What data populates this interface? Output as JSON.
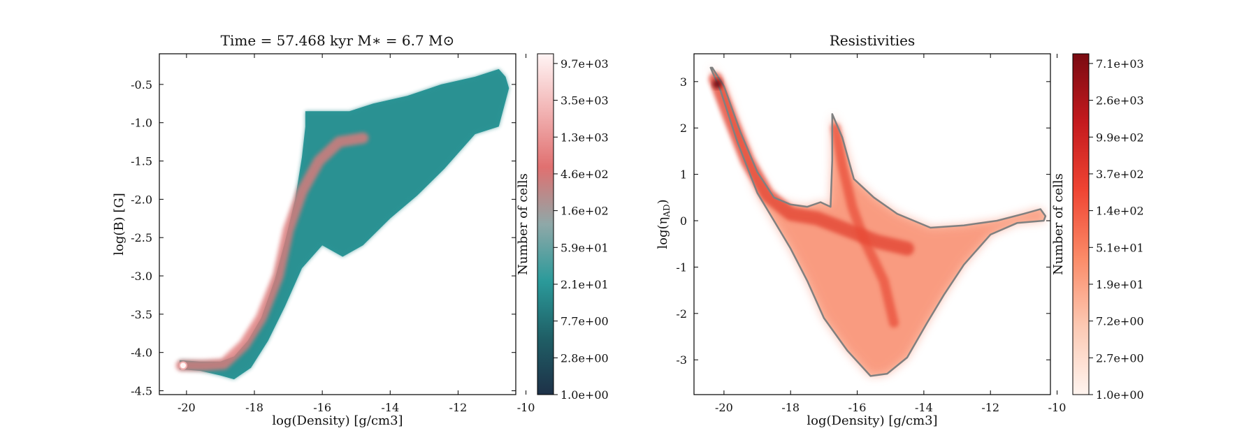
{
  "chart_data": [
    {
      "type": "heatmap",
      "title": "Time = 57.468 kyr    M$_*$ = 6.7 M$_\\odot$",
      "title_display": "Time = 57.468 kyr    M∗ = 6.7 M⊙",
      "xlabel": "log(Density) [g/cm3]",
      "ylabel": "log(B) [G]",
      "xlim": [
        -20.8,
        -10.3
      ],
      "ylim": [
        -4.55,
        -0.1
      ],
      "xticks": [
        -20,
        -18,
        -16,
        -14,
        -12,
        -10
      ],
      "yticks": [
        -4.5,
        -4.0,
        -3.5,
        -3.0,
        -2.5,
        -2.0,
        -1.5,
        -1.0,
        -0.5
      ],
      "ytick_labels": [
        "-4.5",
        "-4.0",
        "-3.5",
        "-3.0",
        "-2.5",
        "-2.0",
        "-1.5",
        "-1.0",
        "-0.5"
      ],
      "colormap": [
        "#1e3148",
        "#1f5f66",
        "#2b9a9a",
        "#8fa8a8",
        "#e07070",
        "#f2b4b4",
        "#fff4f4"
      ],
      "colorbar": {
        "label": "Number of cells",
        "ticks": [
          "1.0e+00",
          "2.8e+00",
          "7.7e+00",
          "2.1e+01",
          "5.9e+01",
          "1.6e+02",
          "4.6e+02",
          "1.3e+03",
          "3.5e+03",
          "9.7e+03"
        ]
      },
      "region_upper": [
        [
          -20.2,
          -4.1
        ],
        [
          -19.6,
          -4.12
        ],
        [
          -19.0,
          -4.12
        ],
        [
          -18.6,
          -4.05
        ],
        [
          -18.2,
          -3.85
        ],
        [
          -17.8,
          -3.55
        ],
        [
          -17.4,
          -3.05
        ],
        [
          -17.1,
          -2.55
        ],
        [
          -16.8,
          -2.0
        ],
        [
          -16.6,
          -1.45
        ],
        [
          -16.5,
          -1.05
        ],
        [
          -16.5,
          -0.85
        ],
        [
          -15.2,
          -0.85
        ],
        [
          -14.5,
          -0.75
        ],
        [
          -13.5,
          -0.65
        ],
        [
          -12.5,
          -0.5
        ],
        [
          -11.5,
          -0.4
        ],
        [
          -10.8,
          -0.3
        ],
        [
          -10.6,
          -0.4
        ],
        [
          -10.5,
          -0.55
        ]
      ],
      "region_lower": [
        [
          -20.2,
          -4.22
        ],
        [
          -19.6,
          -4.24
        ],
        [
          -19.0,
          -4.3
        ],
        [
          -18.6,
          -4.35
        ],
        [
          -18.1,
          -4.2
        ],
        [
          -17.6,
          -3.85
        ],
        [
          -17.1,
          -3.4
        ],
        [
          -16.6,
          -2.9
        ],
        [
          -16.0,
          -2.6
        ],
        [
          -15.4,
          -2.75
        ],
        [
          -14.8,
          -2.6
        ],
        [
          -14.0,
          -2.25
        ],
        [
          -13.2,
          -1.95
        ],
        [
          -12.4,
          -1.6
        ],
        [
          -11.5,
          -1.15
        ],
        [
          -10.8,
          -1.05
        ],
        [
          -10.5,
          -0.55
        ]
      ],
      "ridge": [
        [
          -20.15,
          -4.17
        ],
        [
          -19.5,
          -4.17
        ],
        [
          -18.9,
          -4.15
        ],
        [
          -18.3,
          -3.9
        ],
        [
          -17.8,
          -3.55
        ],
        [
          -17.3,
          -3.0
        ],
        [
          -17.0,
          -2.4
        ],
        [
          -16.6,
          -1.9
        ],
        [
          -16.1,
          -1.5
        ],
        [
          -15.5,
          -1.25
        ],
        [
          -14.8,
          -1.2
        ]
      ],
      "peak": [
        -20.1,
        -4.17
      ]
    },
    {
      "type": "heatmap",
      "title": "Resistivities",
      "xlabel": "log(Density) [g/cm3]",
      "ylabel": "log($\\eta_{\\rm AD}$)",
      "ylabel_display": "log(η",
      "ylabel_sub": "AD",
      "xlim": [
        -20.9,
        -10.2
      ],
      "ylim": [
        -3.75,
        3.6
      ],
      "xticks": [
        -20,
        -18,
        -16,
        -14,
        -12,
        -10
      ],
      "yticks": [
        -3,
        -2,
        -1,
        0,
        1,
        2,
        3
      ],
      "ytick_labels": [
        "-3",
        "-2",
        "-1",
        "0",
        "1",
        "2",
        "3"
      ],
      "colormap": [
        "#fff4ef",
        "#fcc9b3",
        "#fb8b68",
        "#ef4533",
        "#c41a1e",
        "#7a0b12"
      ],
      "colorbar": {
        "label": "Number of cells",
        "ticks": [
          "1.0e+00",
          "2.7e+00",
          "7.2e+00",
          "1.9e+01",
          "5.1e+01",
          "1.4e+02",
          "3.7e+02",
          "9.9e+02",
          "2.6e+03",
          "7.1e+03"
        ]
      },
      "outline": [
        [
          -20.35,
          3.3
        ],
        [
          -20.0,
          2.9
        ],
        [
          -19.5,
          1.9
        ],
        [
          -19.0,
          1.05
        ],
        [
          -18.5,
          0.5
        ],
        [
          -18.0,
          0.35
        ],
        [
          -17.5,
          0.3
        ],
        [
          -17.1,
          0.4
        ],
        [
          -16.8,
          0.3
        ],
        [
          -16.75,
          1.3
        ],
        [
          -16.75,
          2.3
        ],
        [
          -16.45,
          1.8
        ],
        [
          -16.1,
          0.9
        ],
        [
          -15.5,
          0.5
        ],
        [
          -14.8,
          0.15
        ],
        [
          -13.8,
          -0.15
        ],
        [
          -12.8,
          -0.1
        ],
        [
          -11.8,
          0.0
        ],
        [
          -11.0,
          0.15
        ],
        [
          -10.5,
          0.25
        ],
        [
          -10.35,
          0.1
        ],
        [
          -10.4,
          0.0
        ],
        [
          -11.2,
          -0.05
        ],
        [
          -12.0,
          -0.3
        ],
        [
          -12.8,
          -0.95
        ],
        [
          -13.4,
          -1.6
        ],
        [
          -13.9,
          -2.2
        ],
        [
          -14.5,
          -2.95
        ],
        [
          -15.1,
          -3.3
        ],
        [
          -15.6,
          -3.35
        ],
        [
          -16.3,
          -2.8
        ],
        [
          -17.0,
          -2.1
        ],
        [
          -17.5,
          -1.3
        ],
        [
          -18.0,
          -0.6
        ],
        [
          -18.5,
          0.0
        ],
        [
          -19.0,
          0.6
        ],
        [
          -19.6,
          1.7
        ],
        [
          -20.1,
          2.8
        ],
        [
          -20.4,
          3.3
        ]
      ],
      "ridge_main": [
        [
          -20.25,
          3.05
        ],
        [
          -19.8,
          2.2
        ],
        [
          -19.3,
          1.3
        ],
        [
          -18.7,
          0.55
        ],
        [
          -18.0,
          0.15
        ],
        [
          -17.2,
          0.05
        ],
        [
          -16.3,
          -0.2
        ],
        [
          -15.4,
          -0.45
        ],
        [
          -14.5,
          -0.6
        ]
      ],
      "ridge_branch": [
        [
          -16.65,
          2.0
        ],
        [
          -16.45,
          1.2
        ],
        [
          -16.15,
          0.3
        ],
        [
          -15.8,
          -0.4
        ],
        [
          -15.2,
          -1.3
        ],
        [
          -14.9,
          -2.2
        ]
      ],
      "peak": [
        -20.2,
        2.95
      ]
    }
  ]
}
